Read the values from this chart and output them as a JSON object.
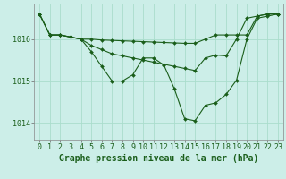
{
  "background_color": "#cceee8",
  "grid_color": "#aaddcc",
  "line_color": "#1a5e1a",
  "marker_color": "#1a5e1a",
  "xlabel": "Graphe pression niveau de la mer (hPa)",
  "xlabel_fontsize": 7,
  "tick_fontsize": 6,
  "yticks": [
    1014,
    1015,
    1016
  ],
  "ylim": [
    1013.6,
    1016.85
  ],
  "xlim": [
    -0.5,
    23.5
  ],
  "xticks": [
    0,
    1,
    2,
    3,
    4,
    5,
    6,
    7,
    8,
    9,
    10,
    11,
    12,
    13,
    14,
    15,
    16,
    17,
    18,
    19,
    20,
    21,
    22,
    23
  ],
  "series": [
    {
      "x": [
        0,
        1,
        2,
        3,
        4,
        5,
        6,
        7,
        8,
        9,
        10,
        11,
        12,
        13,
        14,
        15,
        16,
        17,
        18,
        19,
        20,
        21,
        22,
        23
      ],
      "y": [
        1016.6,
        1016.1,
        1016.1,
        1016.05,
        1016.0,
        1016.0,
        1015.98,
        1015.97,
        1015.96,
        1015.95,
        1015.94,
        1015.93,
        1015.92,
        1015.91,
        1015.9,
        1015.9,
        1016.0,
        1016.1,
        1016.1,
        1016.1,
        1016.1,
        1016.55,
        1016.6,
        1016.6
      ]
    },
    {
      "x": [
        0,
        1,
        2,
        3,
        4,
        5,
        6,
        7,
        8,
        9,
        10,
        11,
        12,
        13,
        14,
        15,
        16,
        17,
        18,
        19,
        20,
        21,
        22,
        23
      ],
      "y": [
        1016.6,
        1016.1,
        1016.1,
        1016.05,
        1016.0,
        1015.85,
        1015.75,
        1015.65,
        1015.6,
        1015.55,
        1015.5,
        1015.45,
        1015.4,
        1015.35,
        1015.3,
        1015.25,
        1015.55,
        1015.62,
        1015.6,
        1016.0,
        1016.5,
        1016.55,
        1016.6,
        1016.6
      ]
    },
    {
      "x": [
        0,
        1,
        2,
        3,
        4,
        5,
        6,
        7,
        8,
        9,
        10,
        11,
        12,
        13,
        14,
        15,
        16,
        17,
        18,
        19,
        20,
        21,
        22,
        23
      ],
      "y": [
        1016.6,
        1016.1,
        1016.1,
        1016.05,
        1016.0,
        1015.7,
        1015.35,
        1015.0,
        1015.0,
        1015.15,
        1015.55,
        1015.55,
        1015.38,
        1014.82,
        1014.1,
        1014.05,
        1014.42,
        1014.48,
        1014.68,
        1015.02,
        1016.0,
        1016.5,
        1016.55,
        1016.6
      ]
    }
  ]
}
